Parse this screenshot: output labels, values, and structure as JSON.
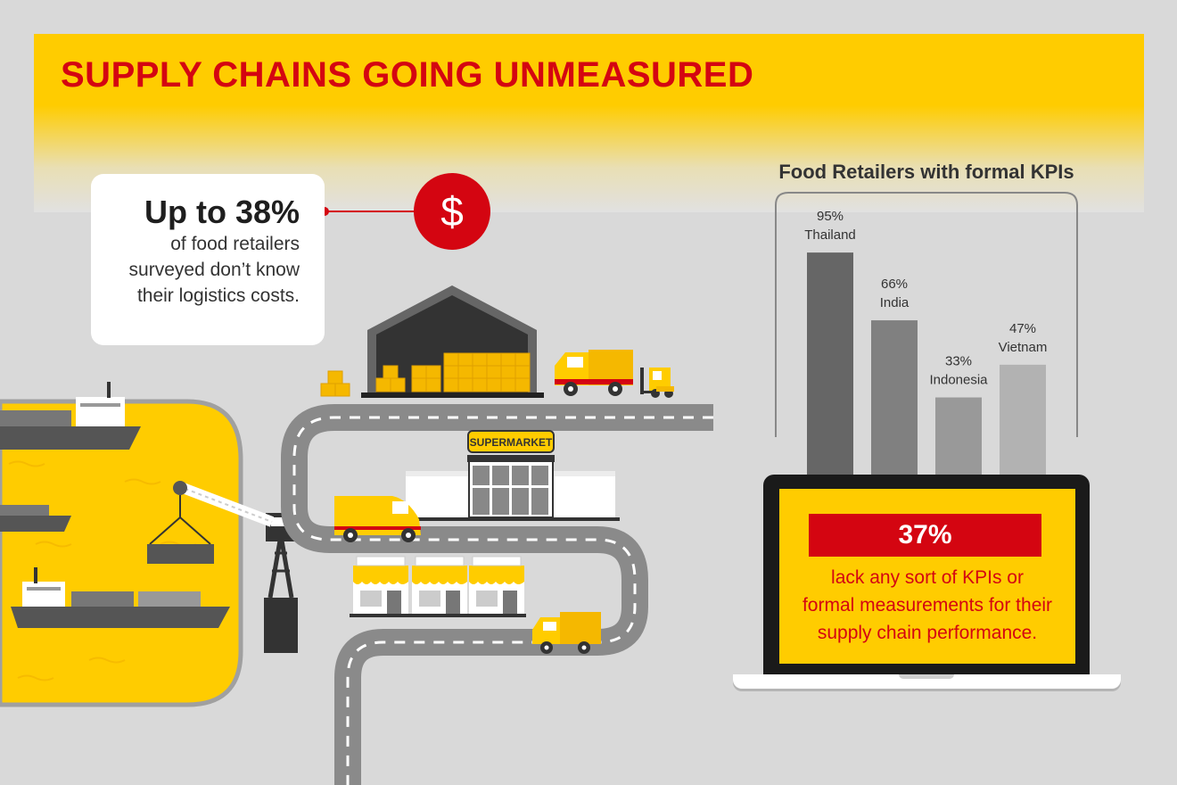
{
  "title": "SUPPLY CHAINS GOING UNMEASURED",
  "callout": {
    "big": "Up to 38%",
    "lines": [
      "of food retailers",
      "surveyed don’t know",
      "their logistics costs."
    ],
    "icon": "dollar-icon",
    "icon_glyph": "$"
  },
  "scene": {
    "supermarket_sign": "SUPERMARKET"
  },
  "laptop": {
    "big": "37%",
    "lines": [
      "lack any sort of KPIs or",
      "formal measurements for their",
      "supply chain performance."
    ]
  },
  "colors": {
    "dhl_yellow": "#ffcc00",
    "dhl_red": "#d40511",
    "background": "#d9d9d9"
  },
  "chart_data": {
    "type": "bar",
    "title": "Food Retailers with formal KPIs",
    "categories": [
      "Thailand",
      "India",
      "Indonesia",
      "Vietnam"
    ],
    "values": [
      95,
      66,
      33,
      47
    ],
    "value_labels": [
      "95%",
      "66%",
      "33%",
      "47%"
    ],
    "bar_colors": [
      "#666666",
      "#808080",
      "#999999",
      "#b2b2b2"
    ],
    "ylim": [
      0,
      100
    ],
    "grid": false,
    "legend": "none"
  }
}
